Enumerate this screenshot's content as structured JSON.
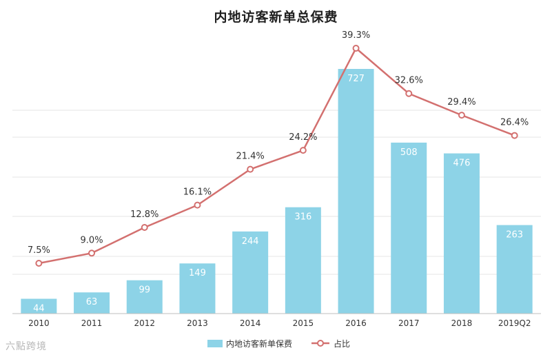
{
  "chart_data": {
    "type": "bar+line",
    "title": "内地访客新单总保费",
    "categories": [
      "2010",
      "2011",
      "2012",
      "2013",
      "2014",
      "2015",
      "2016",
      "2017",
      "2018",
      "2019Q2"
    ],
    "series": [
      {
        "name": "内地访客新单保费",
        "type": "bar",
        "color": "#8dd3e7",
        "values": [
          44,
          63,
          99,
          149,
          244,
          316,
          727,
          508,
          476,
          263
        ],
        "labels": [
          "44",
          "63",
          "99",
          "149",
          "244",
          "316",
          "727",
          "508",
          "476",
          "263"
        ]
      },
      {
        "name": "占比",
        "type": "line",
        "color": "#d3706f",
        "values": [
          7.5,
          9.0,
          12.8,
          16.1,
          21.4,
          24.2,
          39.3,
          32.6,
          29.4,
          26.4
        ],
        "labels": [
          "7.5%",
          "9.0%",
          "12.8%",
          "16.1%",
          "21.4%",
          "24.2%",
          "39.3%",
          "32.6%",
          "29.4%",
          "26.4%"
        ]
      }
    ],
    "ylim": [
      0,
      800
    ],
    "ylim_right": [
      0,
      45
    ],
    "grid": true,
    "legend": "bottom-center"
  },
  "watermark": "六點跨境"
}
